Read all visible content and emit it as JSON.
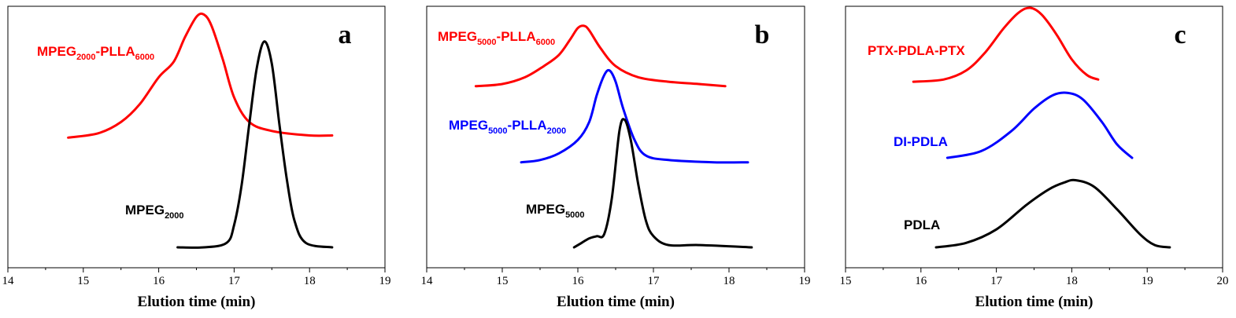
{
  "chart_data": [
    {
      "type": "line",
      "panel_label": "a",
      "xlabel": "Elution time (min)",
      "ylabel": "",
      "xlim": [
        14,
        19
      ],
      "xticks": [
        "14",
        "15",
        "16",
        "17",
        "18",
        "19"
      ],
      "yticks_shown": false,
      "grid": false,
      "series": [
        {
          "label": {
            "main": "MPEG",
            "sub1": "2000",
            "mid": "-PLLA",
            "sub2": "6000"
          },
          "color": "#ff0000",
          "baseline": 0.49,
          "x": [
            14.8,
            15.2,
            15.5,
            15.75,
            16.0,
            16.2,
            16.35,
            16.5,
            16.6,
            16.7,
            16.85,
            17.0,
            17.2,
            17.5,
            18.0,
            18.3
          ],
          "y": [
            0.0,
            0.02,
            0.07,
            0.15,
            0.27,
            0.34,
            0.45,
            0.54,
            0.55,
            0.5,
            0.35,
            0.18,
            0.07,
            0.03,
            0.01,
            0.01
          ]
        },
        {
          "label": {
            "main": "MPEG",
            "sub1": "2000",
            "mid": "",
            "sub2": ""
          },
          "color": "#000000",
          "baseline": 0.0,
          "x": [
            16.25,
            16.6,
            16.9,
            17.0,
            17.1,
            17.2,
            17.3,
            17.4,
            17.5,
            17.6,
            17.7,
            17.8,
            17.95,
            18.3
          ],
          "y": [
            0.0,
            0.0,
            0.02,
            0.1,
            0.28,
            0.55,
            0.8,
            0.92,
            0.82,
            0.55,
            0.3,
            0.12,
            0.02,
            0.0
          ]
        }
      ]
    },
    {
      "type": "line",
      "panel_label": "b",
      "xlabel": "Elution time (min)",
      "ylabel": "",
      "xlim": [
        14,
        19
      ],
      "xticks": [
        "14",
        "15",
        "16",
        "17",
        "18",
        "19"
      ],
      "yticks_shown": false,
      "grid": false,
      "series": [
        {
          "label": {
            "main": "MPEG",
            "sub1": "5000",
            "mid": "-PLLA",
            "sub2": "6000"
          },
          "color": "#ff0000",
          "baseline": 0.72,
          "x": [
            14.65,
            15.0,
            15.3,
            15.55,
            15.75,
            15.9,
            16.0,
            16.08,
            16.15,
            16.3,
            16.5,
            16.8,
            17.2,
            17.6,
            17.95
          ],
          "y": [
            0.0,
            0.01,
            0.04,
            0.09,
            0.14,
            0.21,
            0.26,
            0.27,
            0.25,
            0.17,
            0.09,
            0.04,
            0.02,
            0.01,
            0.0
          ]
        },
        {
          "label": {
            "main": "MPEG",
            "sub1": "5000",
            "mid": "-PLLA",
            "sub2": "2000"
          },
          "color": "#0000ff",
          "baseline": 0.38,
          "x": [
            15.25,
            15.5,
            15.75,
            16.0,
            16.15,
            16.25,
            16.35,
            16.42,
            16.5,
            16.6,
            16.75,
            16.9,
            17.2,
            17.8,
            18.25
          ],
          "y": [
            0.0,
            0.01,
            0.04,
            0.1,
            0.18,
            0.3,
            0.39,
            0.41,
            0.36,
            0.24,
            0.1,
            0.03,
            0.01,
            0.0,
            0.0
          ]
        },
        {
          "label": {
            "main": "MPEG",
            "sub1": "5000",
            "mid": "",
            "sub2": ""
          },
          "color": "#000000",
          "baseline": 0.0,
          "x": [
            15.95,
            16.05,
            16.15,
            16.25,
            16.35,
            16.45,
            16.55,
            16.62,
            16.7,
            16.8,
            16.9,
            17.0,
            17.2,
            17.6,
            18.3
          ],
          "y": [
            0.0,
            0.02,
            0.04,
            0.05,
            0.06,
            0.22,
            0.52,
            0.57,
            0.48,
            0.28,
            0.12,
            0.05,
            0.01,
            0.01,
            0.0
          ]
        }
      ]
    },
    {
      "type": "line",
      "panel_label": "c",
      "xlabel": "Elution time (min)",
      "ylabel": "",
      "xlim": [
        15,
        20
      ],
      "xticks": [
        "15",
        "16",
        "17",
        "18",
        "19",
        "20"
      ],
      "yticks_shown": false,
      "grid": false,
      "series": [
        {
          "label": {
            "main": "PTX-PDLA-PTX",
            "sub1": "",
            "mid": "",
            "sub2": ""
          },
          "color": "#ff0000",
          "baseline": 0.74,
          "x": [
            15.9,
            16.3,
            16.6,
            16.85,
            17.1,
            17.3,
            17.45,
            17.6,
            17.8,
            18.0,
            18.2,
            18.35
          ],
          "y": [
            0.0,
            0.01,
            0.05,
            0.13,
            0.24,
            0.31,
            0.33,
            0.3,
            0.21,
            0.1,
            0.03,
            0.01
          ]
        },
        {
          "label": {
            "main": "DI-PDLA",
            "sub1": "",
            "mid": "",
            "sub2": ""
          },
          "color": "#0000ff",
          "baseline": 0.4,
          "x": [
            16.35,
            16.8,
            17.2,
            17.5,
            17.75,
            17.95,
            18.15,
            18.4,
            18.6,
            18.8
          ],
          "y": [
            0.0,
            0.03,
            0.12,
            0.22,
            0.28,
            0.29,
            0.26,
            0.16,
            0.06,
            0.0
          ]
        },
        {
          "label": {
            "main": "PDLA",
            "sub1": "",
            "mid": "",
            "sub2": ""
          },
          "color": "#000000",
          "baseline": 0.0,
          "x": [
            16.2,
            16.6,
            17.0,
            17.4,
            17.7,
            17.9,
            18.05,
            18.3,
            18.6,
            18.9,
            19.1,
            19.3
          ],
          "y": [
            0.0,
            0.02,
            0.08,
            0.19,
            0.26,
            0.29,
            0.3,
            0.27,
            0.17,
            0.06,
            0.01,
            0.0
          ]
        }
      ]
    }
  ]
}
